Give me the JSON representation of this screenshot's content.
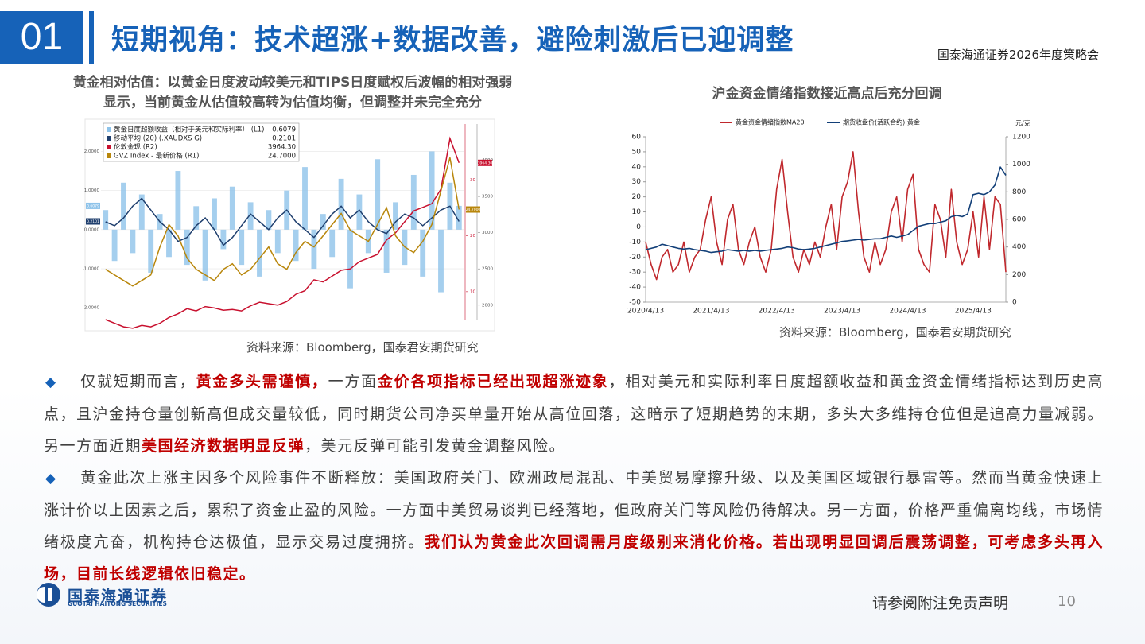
{
  "header": {
    "number": "01",
    "title": "短期视角：技术超涨+数据改善，避险刺激后已迎调整",
    "event": "国泰海通证券2026年度策略会"
  },
  "left_panel": {
    "caption_lines": [
      "黄金相对估值：以黄金日度波动较美元和TIPS日度赋权后波幅的相对强弱",
      "显示，当前黄金从估值较高转为估值均衡，但调整并未完全充分"
    ],
    "source": "资料来源：Bloomberg，国泰君安期货研究",
    "chart_data": {
      "type": "combo",
      "ylim": [
        -2.3,
        2.7
      ],
      "yticks": [
        {
          "value": -2,
          "label": "-2.0000"
        },
        {
          "value": -1,
          "label": "-1.0000"
        },
        {
          "value": 0,
          "label": "0.0000"
        },
        {
          "value": 1,
          "label": "1.0000"
        },
        {
          "value": 2,
          "label": "2.0000"
        }
      ],
      "y2lim": [
        1800,
        4500
      ],
      "y2ticks": [
        2000,
        2500,
        3000,
        3500,
        4000
      ],
      "y3lim": [
        5,
        40
      ],
      "y3ticks": [
        10,
        20,
        30
      ],
      "series": [
        {
          "name": "黄金日度超额收益（相对于美元和实际利率） (L1)",
          "last_label": "0.6079",
          "type": "bar",
          "axis": "y",
          "color": "#8ec3ea",
          "values": [
            0.5,
            -0.8,
            1.2,
            -0.6,
            0.9,
            -1.1,
            0.4,
            -0.7,
            1.5,
            -0.9,
            0.6,
            -1.3,
            0.8,
            -0.5,
            1.1,
            -0.9,
            0.7,
            -1.2,
            0.5,
            -0.6,
            1.0,
            -0.8,
            1.6,
            -1.0,
            0.4,
            -0.7,
            1.3,
            -1.5,
            0.9,
            -0.6,
            1.8,
            -1.1,
            0.7,
            -0.9,
            1.4,
            -1.2,
            2.0,
            -1.6,
            1.2,
            0.6079
          ]
        },
        {
          "name": "移动平均 (20) (.XAUDXS G)",
          "last_label": "0.2101",
          "type": "line",
          "axis": "y",
          "color": "#1f3f6e",
          "values": [
            0.2,
            0.1,
            0.3,
            0.6,
            0.8,
            0.5,
            0.2,
            0.0,
            -0.3,
            -0.2,
            0.1,
            0.3,
            0.0,
            -0.4,
            -0.2,
            0.1,
            0.4,
            0.2,
            0.0,
            0.3,
            0.5,
            0.2,
            0.0,
            -0.2,
            0.1,
            0.4,
            0.6,
            0.3,
            0.5,
            0.2,
            0.0,
            -0.1,
            0.2,
            0.4,
            0.3,
            0.1,
            0.3,
            0.5,
            0.6,
            0.2101
          ]
        },
        {
          "name": "伦敦金现 (R2)",
          "last_label": "3964.30",
          "type": "line",
          "axis": "y2",
          "color": "#c8102e",
          "values": [
            1800,
            1750,
            1700,
            1680,
            1720,
            1700,
            1750,
            1830,
            1880,
            1950,
            1920,
            1980,
            1960,
            1930,
            1940,
            1920,
            1990,
            2040,
            2020,
            2000,
            2050,
            2150,
            2200,
            2350,
            2320,
            2400,
            2480,
            2500,
            2600,
            2650,
            2700,
            2900,
            3000,
            3150,
            3300,
            3350,
            3400,
            3600,
            4300,
            3964.3
          ]
        },
        {
          "name": "GVZ Index - 最新价格 (R1)",
          "last_label": "24.7000",
          "type": "line",
          "axis": "y3",
          "color": "#b8860b",
          "values": [
            14,
            13,
            12,
            11,
            12,
            13,
            18,
            22,
            20,
            16,
            14,
            13,
            12,
            14,
            15,
            13,
            14,
            16,
            18,
            15,
            14,
            17,
            19,
            18,
            20,
            22,
            24,
            21,
            20,
            19,
            22,
            25,
            20,
            18,
            17,
            19,
            22,
            28,
            34,
            24.7
          ]
        }
      ]
    }
  },
  "right_panel": {
    "caption": "沪金资金情绪指数接近高点后充分回调",
    "source": "资料来源：Bloomberg，国泰君安期货研究",
    "chart_data": {
      "type": "line",
      "categories": [
        "2020/4/13",
        null,
        null,
        null,
        null,
        null,
        null,
        null,
        null,
        null,
        null,
        null,
        "2021/4/13",
        null,
        null,
        null,
        null,
        null,
        null,
        null,
        null,
        null,
        null,
        null,
        "2022/4/13",
        null,
        null,
        null,
        null,
        null,
        null,
        null,
        null,
        null,
        null,
        null,
        "2023/4/13",
        null,
        null,
        null,
        null,
        null,
        null,
        null,
        null,
        null,
        null,
        null,
        "2024/4/13",
        null,
        null,
        null,
        null,
        null,
        null,
        null,
        null,
        null,
        null,
        null,
        "2025/4/13",
        null,
        null,
        null,
        null,
        null,
        null
      ],
      "ylim": [
        -50,
        60
      ],
      "yticks": [
        -50,
        -40,
        -30,
        -20,
        -10,
        0,
        10,
        20,
        30,
        40,
        50,
        60
      ],
      "y2lim": [
        0,
        1200
      ],
      "y2ticks": [
        0,
        200,
        400,
        600,
        800,
        1000,
        1200
      ],
      "y2_unit": "元/克",
      "legend": "top",
      "series": [
        {
          "name": "黄金资金情绪指数MA20",
          "color": "#c0282d",
          "axis": "y",
          "values": [
            -10,
            -25,
            -35,
            -20,
            -15,
            -30,
            -25,
            -10,
            -30,
            -20,
            -15,
            5,
            20,
            -10,
            -25,
            5,
            15,
            -15,
            -25,
            -10,
            0,
            -20,
            -30,
            -15,
            25,
            45,
            10,
            -20,
            -30,
            -15,
            -25,
            -10,
            -20,
            0,
            15,
            -15,
            20,
            30,
            50,
            10,
            -20,
            -30,
            -10,
            -25,
            -15,
            10,
            20,
            -10,
            25,
            35,
            -15,
            -25,
            -30,
            15,
            5,
            -20,
            25,
            -10,
            -25,
            -15,
            10,
            -20,
            20,
            -15,
            20,
            15,
            -30
          ]
        },
        {
          "name": "期货收盘价(活跃合约):黄金",
          "color": "#123f78",
          "axis": "y2",
          "values": [
            380,
            390,
            400,
            420,
            410,
            400,
            390,
            385,
            390,
            380,
            375,
            370,
            360,
            365,
            370,
            380,
            375,
            370,
            375,
            370,
            375,
            370,
            375,
            380,
            385,
            390,
            400,
            395,
            385,
            380,
            385,
            390,
            400,
            410,
            420,
            430,
            440,
            445,
            450,
            455,
            450,
            455,
            460,
            460,
            470,
            480,
            470,
            480,
            490,
            520,
            550,
            560,
            570,
            570,
            580,
            590,
            620,
            630,
            620,
            640,
            780,
            790,
            780,
            800,
            850,
            980,
            920
          ]
        }
      ]
    }
  },
  "bullets": [
    {
      "runs": [
        {
          "text": "仅就短期而言，"
        },
        {
          "text": "黄金多头需谨慎，",
          "highlight": true
        },
        {
          "text": "一方面"
        },
        {
          "text": "金价各项指标已经出现超涨迹象",
          "highlight": true
        },
        {
          "text": "，相对美元和实际利率日度超额收益和黄金资金情绪指标达到历史高点，且沪金持仓量创新高但成交量较低，同时期货公司净买单量开始从高位回落，这暗示了短期趋势的末期，多头大多维持仓位但是追高力量减弱。另一方面近期"
        },
        {
          "text": "美国经济数据明显反弹",
          "highlight": true
        },
        {
          "text": "，美元反弹可能引发黄金调整风险。"
        }
      ]
    },
    {
      "runs": [
        {
          "text": "黄金此次上涨主因多个风险事件不断释放：美国政府关门、欧洲政局混乱、中美贸易摩擦升级、以及美国区域银行暴雷等。然而当黄金快速上涨计价以上因素之后，累积了资金止盈的风险。一方面中美贸易谈判已经落地，但政府关门等风险仍待解决。另一方面，价格严重偏离均线，市场情绪极度亢奋，机构持仓达极值，显示交易过度拥挤。"
        },
        {
          "text": "我们认为黄金此次回调需月度级别来消化价格。若出现明显回调后震荡调整，可考虑多头再入场，目前长线逻辑依旧稳定。",
          "highlight": true
        }
      ]
    }
  ],
  "footer": {
    "brand": "国泰海通证券",
    "brand_en": "GUOTAI HAITONG SECURITIES",
    "disclaimer": "请参阅附注免责声明",
    "page": 10
  }
}
